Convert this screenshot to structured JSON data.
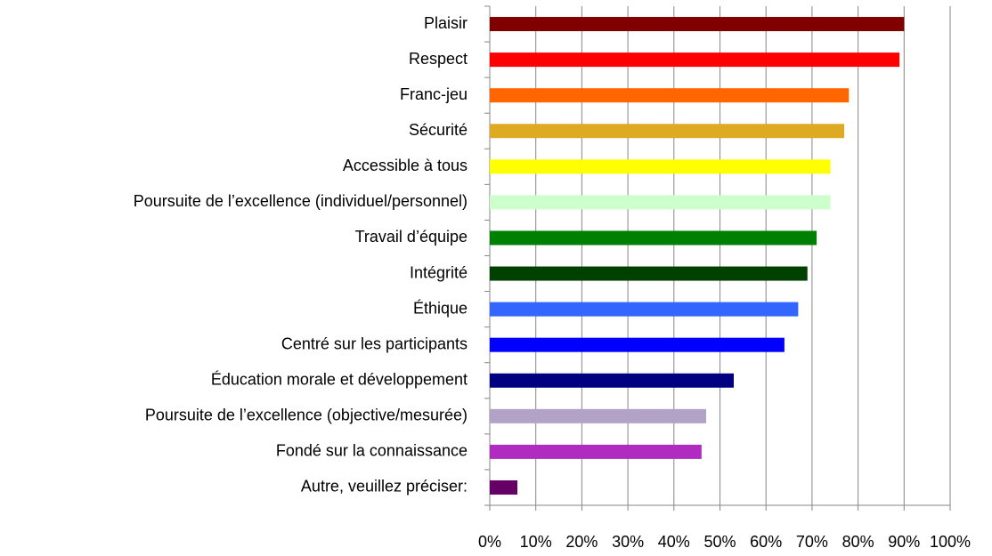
{
  "chart_data": {
    "type": "barh",
    "categories": [
      "Plaisir",
      "Respect",
      "Franc-jeu",
      "Sécurité",
      "Accessible à tous",
      "Poursuite de l’excellence (individuel/personnel)",
      "Travail d’équipe",
      "Intégrité",
      "Éthique",
      "Centré sur les participants",
      "Éducation morale et développement",
      "Poursuite de l’excellence (objective/mesurée)",
      "Fondé sur la connaissance",
      "Autre, veuillez préciser:"
    ],
    "values": [
      90,
      89,
      78,
      77,
      74,
      74,
      71,
      69,
      67,
      64,
      53,
      47,
      46,
      6
    ],
    "colors": [
      "#800000",
      "#ff0000",
      "#ff6600",
      "#ddaa22",
      "#ffff00",
      "#ccffcc",
      "#008000",
      "#004000",
      "#3366ff",
      "#0000ff",
      "#000080",
      "#b3a2c7",
      "#b02cc0",
      "#660066"
    ],
    "xlim": [
      0,
      100
    ],
    "xticks": [
      {
        "value": 0,
        "label": "0%"
      },
      {
        "value": 10,
        "label": "10%"
      },
      {
        "value": 20,
        "label": "20%"
      },
      {
        "value": 30,
        "label": "30%"
      },
      {
        "value": 40,
        "label": "40%"
      },
      {
        "value": 50,
        "label": "50%"
      },
      {
        "value": 60,
        "label": "60%"
      },
      {
        "value": 70,
        "label": "70%"
      },
      {
        "value": 80,
        "label": "80%"
      },
      {
        "value": 90,
        "label": "90%"
      },
      {
        "value": 100,
        "label": "100%"
      }
    ],
    "grid": true
  }
}
